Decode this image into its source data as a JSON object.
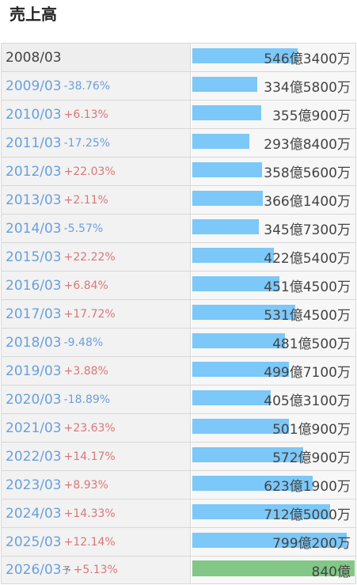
{
  "title": "売上高",
  "forecast_mark": "予",
  "colors": {
    "bar": "#7cc8f8",
    "forecast_bar": "#82c785",
    "up": "#d8787a",
    "down": "#6aa0dc"
  },
  "chart_data": {
    "type": "bar",
    "orientation": "horizontal",
    "title": "売上高",
    "xmax": 840,
    "rows": [
      {
        "period": "2008/03",
        "yoy": "",
        "value": 546.34,
        "label": "546億3400万",
        "forecast": false
      },
      {
        "period": "2009/03",
        "yoy": "-38.76%",
        "value": 334.58,
        "label": "334億5800万",
        "forecast": false
      },
      {
        "period": "2010/03",
        "yoy": "+6.13%",
        "value": 355.09,
        "label": "355億900万",
        "forecast": false
      },
      {
        "period": "2011/03",
        "yoy": "-17.25%",
        "value": 293.84,
        "label": "293億8400万",
        "forecast": false
      },
      {
        "period": "2012/03",
        "yoy": "+22.03%",
        "value": 358.56,
        "label": "358億5600万",
        "forecast": false
      },
      {
        "period": "2013/03",
        "yoy": "+2.11%",
        "value": 366.14,
        "label": "366億1400万",
        "forecast": false
      },
      {
        "period": "2014/03",
        "yoy": "-5.57%",
        "value": 345.73,
        "label": "345億7300万",
        "forecast": false
      },
      {
        "period": "2015/03",
        "yoy": "+22.22%",
        "value": 422.54,
        "label": "422億5400万",
        "forecast": false
      },
      {
        "period": "2016/03",
        "yoy": "+6.84%",
        "value": 451.45,
        "label": "451億4500万",
        "forecast": false
      },
      {
        "period": "2017/03",
        "yoy": "+17.72%",
        "value": 531.45,
        "label": "531億4500万",
        "forecast": false
      },
      {
        "period": "2018/03",
        "yoy": "-9.48%",
        "value": 481.05,
        "label": "481億500万",
        "forecast": false
      },
      {
        "period": "2019/03",
        "yoy": "+3.88%",
        "value": 499.71,
        "label": "499億7100万",
        "forecast": false
      },
      {
        "period": "2020/03",
        "yoy": "-18.89%",
        "value": 405.31,
        "label": "405億3100万",
        "forecast": false
      },
      {
        "period": "2021/03",
        "yoy": "+23.63%",
        "value": 501.09,
        "label": "501億900万",
        "forecast": false
      },
      {
        "period": "2022/03",
        "yoy": "+14.17%",
        "value": 572.09,
        "label": "572億900万",
        "forecast": false
      },
      {
        "period": "2023/03",
        "yoy": "+8.93%",
        "value": 623.19,
        "label": "623億1900万",
        "forecast": false
      },
      {
        "period": "2024/03",
        "yoy": "+14.33%",
        "value": 712.5,
        "label": "712億5000万",
        "forecast": false
      },
      {
        "period": "2025/03",
        "yoy": "+12.14%",
        "value": 799.02,
        "label": "799億200万",
        "forecast": false
      },
      {
        "period": "2026/03",
        "yoy": "+5.13%",
        "value": 840.0,
        "label": "840億",
        "forecast": true
      }
    ]
  }
}
